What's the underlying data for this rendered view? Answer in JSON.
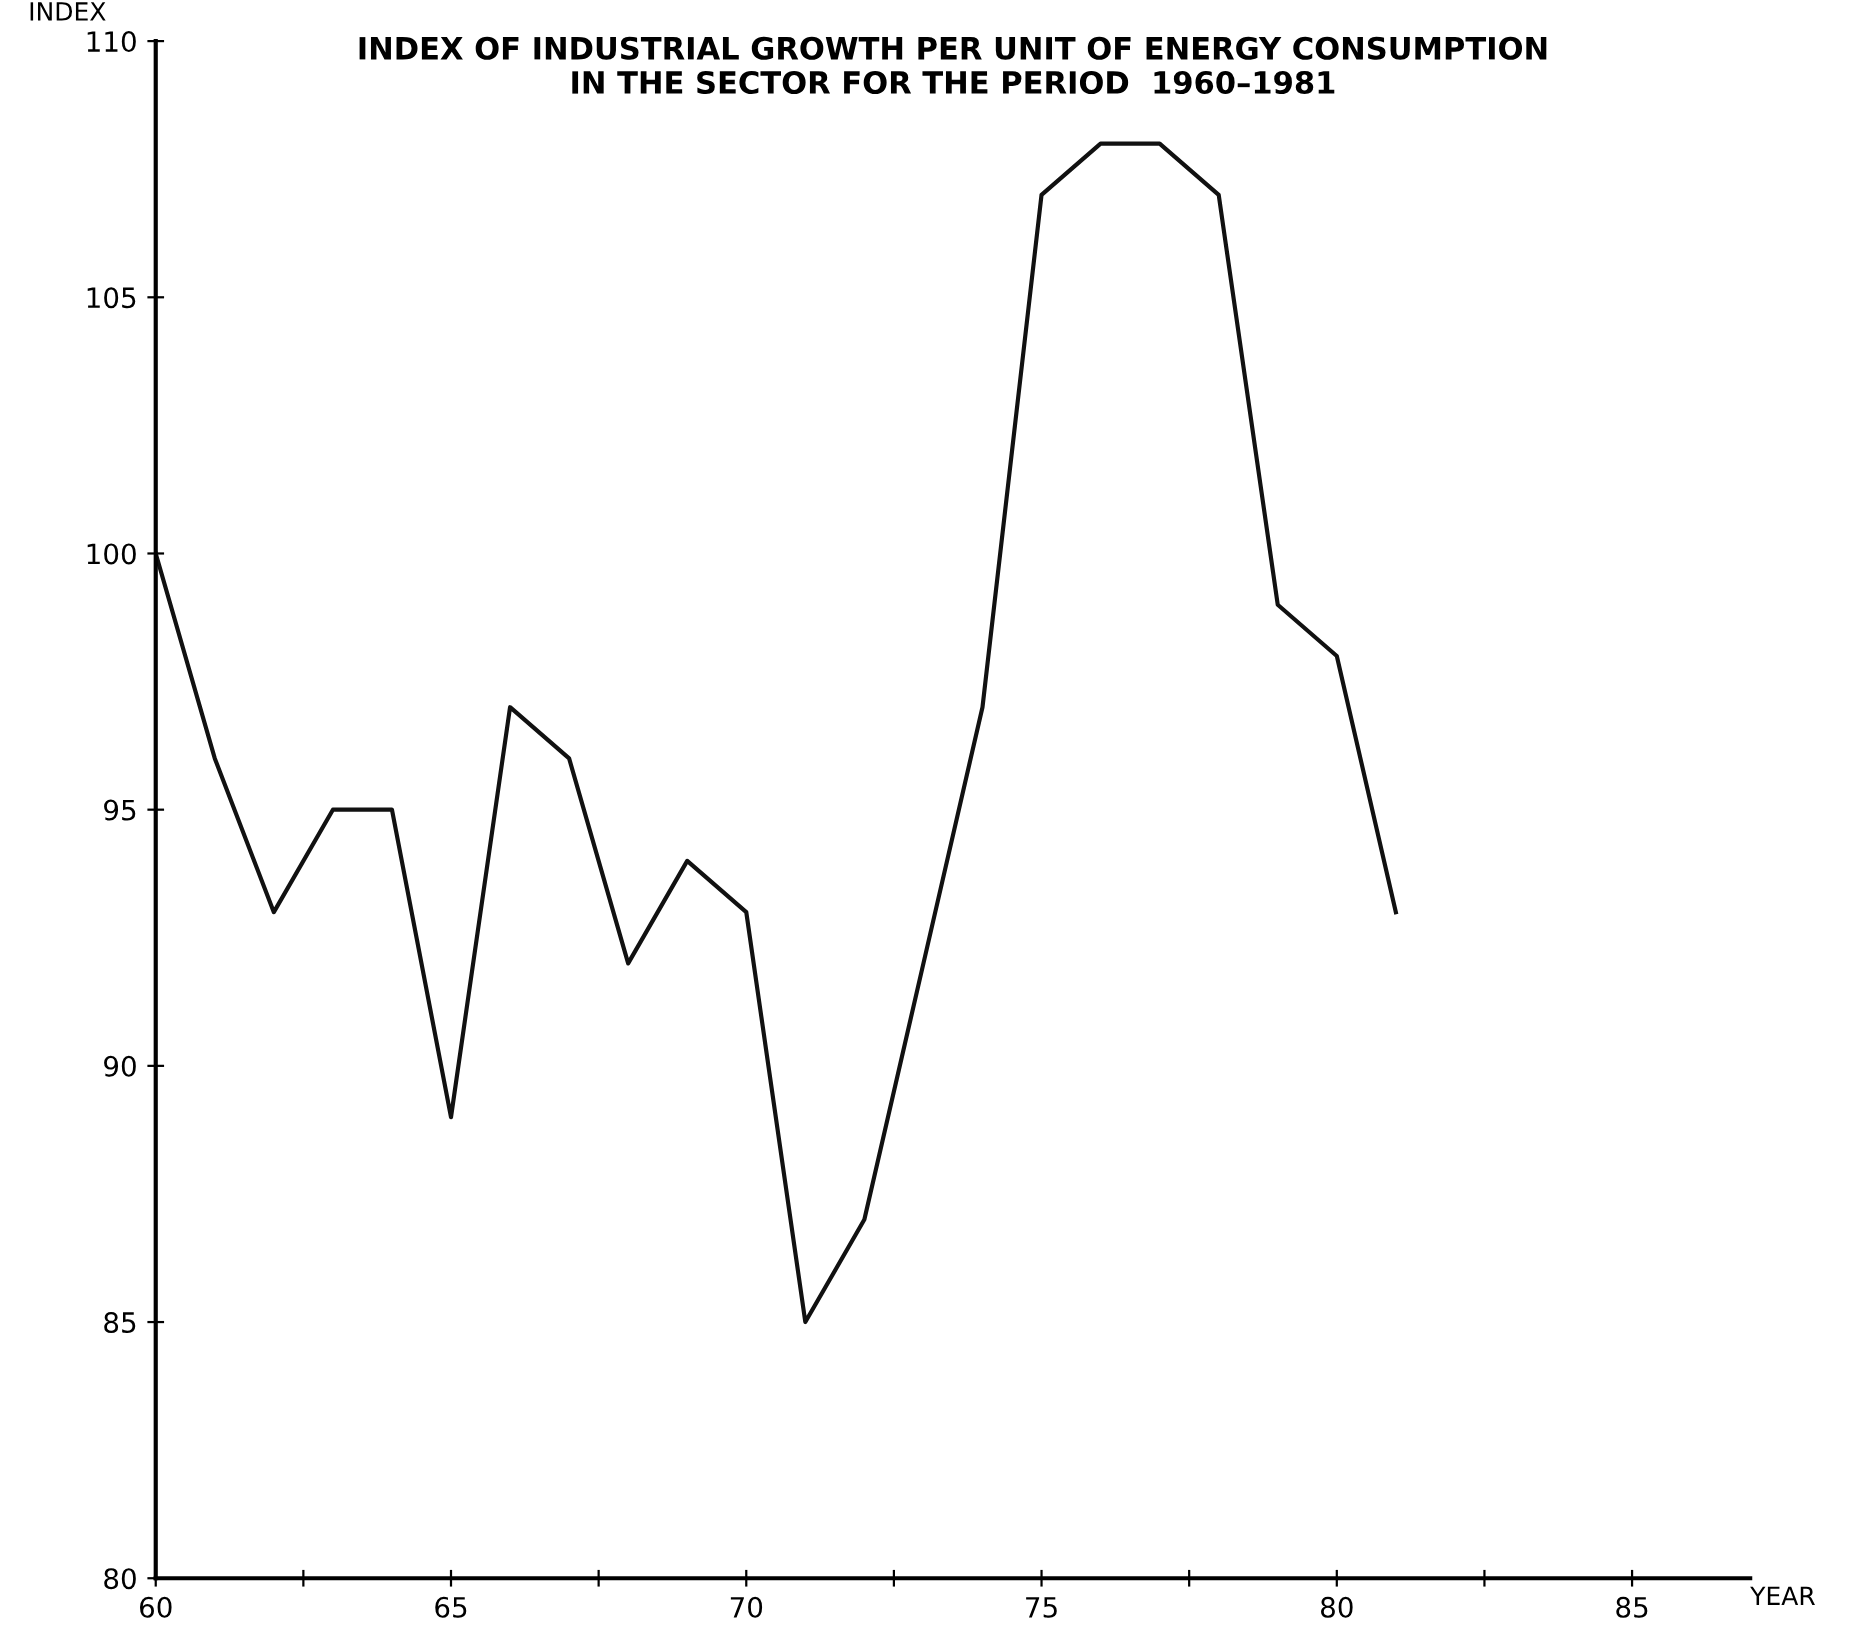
{
  "chart_data": {
    "type": "line",
    "title": "INDEX OF INDUSTRIAL GROWTH PER UNIT OF ENERGY CONSUMPTION\nIN THE SECTOR FOR THE PERIOD  1960–1981",
    "xlabel": "YEAR",
    "ylabel": "INDEX",
    "x": [
      60,
      61,
      62,
      63,
      64,
      65,
      66,
      67,
      68,
      69,
      70,
      71,
      72,
      73,
      74,
      75,
      76,
      77,
      78,
      79,
      80,
      81
    ],
    "series": [
      {
        "color": "#111111",
        "values": [
          100,
          96,
          93,
          95,
          95,
          89,
          97,
          96,
          92,
          94,
          93,
          85,
          87,
          92,
          97,
          107,
          108,
          108,
          107,
          99,
          98,
          93
        ]
      }
    ],
    "xlim": [
      60,
      87
    ],
    "ylim": [
      80,
      110
    ],
    "xticks": [
      60,
      {
        "value": 62.5,
        "label": null
      },
      65,
      {
        "value": 67.5,
        "label": null
      },
      70,
      {
        "value": 72.5,
        "label": null
      },
      75,
      {
        "value": 77.5,
        "label": null
      },
      80,
      {
        "value": 82.5,
        "label": null
      },
      85
    ],
    "yticks": [
      80,
      85,
      90,
      95,
      100,
      105,
      110
    ],
    "grid": false,
    "marker": "none",
    "line_style": "solid"
  }
}
